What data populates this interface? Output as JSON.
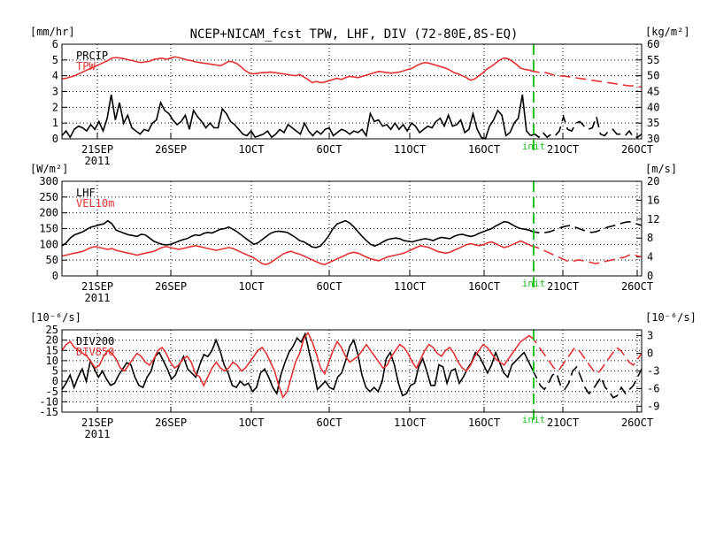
{
  "title": "NCEP+NICAM_fcst TPW, LHF, DIV (72-80E,8S-EQ)",
  "colors": {
    "black": "#000000",
    "red": "#e63232",
    "green": "#21c321"
  },
  "chart_data": [
    {
      "type": "line",
      "panel": "top",
      "left_unit": "[mm/hr]",
      "right_unit": "[kg/m²]",
      "left_ticks": [
        "0",
        "1",
        "2",
        "3",
        "4",
        "5",
        "6"
      ],
      "right_ticks": [
        "30",
        "35",
        "40",
        "45",
        "50",
        "55",
        "60"
      ],
      "ylim_left": [
        0,
        6
      ],
      "ylim_right": [
        30,
        60
      ],
      "grid": true,
      "x_tick_labels": [
        "21SEP",
        "26SEP",
        "1OCT",
        "6OCT",
        "11OCT",
        "16OCT",
        "21OCT",
        "26OCT"
      ],
      "x_year_label": "2011",
      "init_label": "init",
      "series": [
        {
          "name": "PRCIP",
          "axis": "left",
          "values": [
            0.2,
            0.5,
            0.1,
            0.6,
            0.8,
            0.7,
            0.5,
            0.9,
            0.6,
            1.1,
            0.5,
            1.3,
            2.8,
            1.2,
            2.3,
            1.0,
            1.5,
            0.7,
            0.5,
            0.3,
            0.6,
            0.5,
            1.0,
            1.2,
            2.3,
            1.8,
            1.6,
            1.2,
            0.9,
            1.1,
            1.5,
            0.6,
            1.8,
            1.4,
            1.1,
            0.7,
            1.0,
            0.7,
            0.7,
            1.9,
            1.6,
            1.1,
            0.9,
            0.6,
            0.3,
            0.2,
            0.5,
            0.1,
            0.2,
            0.3,
            0.5,
            0.1,
            0.3,
            0.6,
            0.4,
            0.9,
            0.7,
            0.5,
            0.3,
            1.0,
            0.5,
            0.2,
            0.5,
            0.3,
            0.6,
            0.7,
            0.2,
            0.4,
            0.6,
            0.5,
            0.3,
            0.5,
            0.4,
            0.6,
            0.2,
            1.6,
            1.1,
            1.2,
            0.8,
            0.9,
            0.6,
            1.0,
            0.6,
            0.9,
            0.5,
            1.0,
            0.8,
            0.4,
            0.6,
            0.8,
            0.7,
            1.1,
            1.3,
            0.8,
            1.5,
            0.8,
            0.9,
            1.2,
            0.4,
            0.6,
            1.6,
            0.6,
            0.1,
            0.0,
            0.8,
            1.2,
            1.8,
            1.5,
            0.2,
            0.4,
            1.0,
            1.3,
            2.8,
            0.5,
            0.2,
            0.3,
            0.1,
            0.4,
            0.1,
            0.3,
            0.2,
            0.5,
            1.4,
            0.6,
            0.5,
            1.0,
            1.1,
            0.8,
            0.6,
            0.7,
            1.4,
            0.3,
            0.2,
            0.5,
            0.6,
            0.3,
            0.3,
            0.2,
            0.5,
            0.1,
            0.1,
            0.3
          ]
        },
        {
          "name": "TPW",
          "axis": "right",
          "values": [
            49.0,
            49.2,
            49.6,
            50.0,
            50.6,
            51.2,
            51.8,
            52.4,
            53.0,
            53.6,
            54.2,
            54.8,
            55.6,
            55.8,
            55.6,
            55.4,
            55.0,
            54.8,
            54.4,
            54.2,
            54.4,
            54.6,
            55.2,
            55.4,
            55.6,
            55.2,
            55.6,
            56.0,
            55.8,
            55.4,
            55.0,
            54.8,
            54.4,
            54.2,
            54.0,
            53.8,
            53.6,
            53.4,
            53.2,
            53.8,
            54.6,
            54.4,
            53.8,
            52.8,
            51.6,
            50.8,
            50.6,
            50.8,
            51.0,
            51.0,
            51.2,
            51.0,
            50.8,
            50.6,
            50.4,
            50.2,
            50.0,
            50.4,
            49.6,
            48.8,
            47.8,
            48.2,
            47.8,
            48.0,
            48.4,
            48.8,
            49.2,
            48.8,
            49.4,
            49.8,
            49.6,
            49.4,
            49.8,
            50.2,
            50.6,
            51.0,
            51.4,
            51.2,
            51.0,
            50.8,
            51.0,
            51.2,
            51.6,
            52.0,
            52.4,
            53.2,
            53.8,
            54.2,
            54.0,
            53.6,
            53.2,
            52.8,
            52.4,
            51.8,
            51.0,
            50.6,
            50.0,
            49.4,
            48.6,
            49.0,
            50.0,
            51.0,
            52.2,
            53.0,
            54.0,
            55.0,
            55.6,
            55.4,
            54.6,
            53.6,
            52.4,
            52.0,
            51.8,
            51.4,
            51.2,
            50.8,
            51.0,
            50.6,
            50.2,
            49.8,
            50.0,
            49.8,
            49.6,
            49.4,
            49.2,
            49.0,
            48.8,
            48.6,
            48.4,
            48.2,
            48.0,
            47.8,
            47.6,
            47.4,
            47.2,
            47.0,
            46.8,
            46.8,
            46.6,
            46.4
          ]
        }
      ]
    },
    {
      "type": "line",
      "panel": "middle",
      "left_unit": "[W/m²]",
      "right_unit": "[m/s]",
      "left_ticks": [
        "0",
        "50",
        "100",
        "150",
        "200",
        "250",
        "300"
      ],
      "right_ticks": [
        "0",
        "4",
        "8",
        "12",
        "16",
        "20"
      ],
      "ylim_left": [
        0,
        300
      ],
      "ylim_right": [
        0,
        20
      ],
      "grid": true,
      "x_tick_labels": [
        "21SEP",
        "26SEP",
        "1OCT",
        "6OCT",
        "11OCT",
        "16OCT",
        "21OCT",
        "26OCT"
      ],
      "x_year_label": "2011",
      "init_label": "init",
      "series": [
        {
          "name": "LHF",
          "axis": "left",
          "values": [
            95,
            105,
            120,
            130,
            135,
            140,
            148,
            155,
            158,
            162,
            165,
            175,
            165,
            145,
            140,
            135,
            130,
            128,
            125,
            132,
            130,
            120,
            110,
            105,
            100,
            98,
            100,
            105,
            110,
            115,
            118,
            125,
            130,
            128,
            135,
            138,
            136,
            142,
            148,
            150,
            155,
            148,
            140,
            130,
            120,
            110,
            100,
            105,
            115,
            125,
            135,
            140,
            142,
            140,
            138,
            130,
            122,
            112,
            108,
            100,
            92,
            90,
            95,
            110,
            128,
            150,
            165,
            170,
            175,
            168,
            155,
            140,
            125,
            112,
            100,
            95,
            100,
            108,
            115,
            118,
            120,
            118,
            112,
            110,
            108,
            112,
            115,
            118,
            116,
            112,
            118,
            122,
            120,
            118,
            125,
            130,
            132,
            128,
            125,
            128,
            135,
            140,
            145,
            150,
            158,
            165,
            172,
            170,
            162,
            155,
            150,
            148,
            145,
            140,
            138,
            135,
            138,
            140,
            145,
            150,
            155,
            158,
            160,
            155,
            150,
            145,
            140,
            138,
            140,
            145,
            150,
            155,
            158,
            162,
            166,
            170,
            172,
            168,
            164,
            160
          ]
        },
        {
          "name": "VEL10m",
          "axis": "right",
          "values": [
            4.2,
            4.4,
            4.6,
            4.8,
            5.0,
            5.2,
            5.6,
            6.0,
            6.2,
            6.0,
            5.8,
            5.6,
            5.8,
            5.4,
            5.2,
            5.0,
            4.8,
            4.6,
            4.4,
            4.6,
            4.8,
            5.0,
            5.2,
            5.6,
            6.0,
            6.2,
            6.0,
            5.8,
            5.6,
            5.8,
            6.0,
            6.2,
            6.4,
            6.2,
            6.0,
            5.8,
            5.6,
            5.4,
            5.6,
            5.8,
            6.0,
            5.8,
            5.4,
            5.0,
            4.6,
            4.2,
            3.8,
            3.2,
            2.6,
            2.4,
            2.8,
            3.4,
            4.0,
            4.6,
            5.0,
            5.2,
            4.8,
            4.6,
            4.2,
            3.8,
            3.4,
            3.0,
            2.6,
            2.4,
            2.8,
            3.2,
            3.6,
            4.0,
            4.4,
            4.8,
            5.0,
            4.8,
            4.4,
            4.0,
            3.6,
            3.4,
            3.2,
            3.6,
            4.0,
            4.2,
            4.4,
            4.6,
            4.8,
            5.2,
            5.6,
            6.0,
            6.4,
            6.2,
            6.0,
            5.6,
            5.2,
            5.0,
            4.8,
            5.0,
            5.4,
            5.8,
            6.2,
            6.6,
            6.8,
            6.6,
            6.4,
            6.6,
            7.0,
            7.2,
            6.8,
            6.4,
            6.0,
            6.2,
            6.6,
            7.0,
            7.4,
            7.0,
            6.6,
            6.2,
            6.0,
            5.6,
            5.2,
            4.8,
            4.4,
            4.0,
            3.6,
            3.2,
            3.0,
            3.2,
            3.4,
            3.2,
            3.0,
            2.8,
            2.6,
            2.8,
            3.0,
            3.2,
            3.4,
            3.6,
            3.8,
            4.0,
            4.4,
            4.6,
            4.2,
            4.0
          ]
        }
      ]
    },
    {
      "type": "line",
      "panel": "bottom",
      "left_unit": "[10⁻⁶/s]",
      "right_unit": "[10⁻⁶/s]",
      "left_ticks": [
        "-15",
        "-10",
        "-5",
        "0",
        "5",
        "10",
        "15",
        "20",
        "25"
      ],
      "right_ticks": [
        "-9",
        "-6",
        "-3",
        "0",
        "3"
      ],
      "ylim_left": [
        -15,
        25
      ],
      "ylim_right": [
        -10,
        4
      ],
      "grid": true,
      "x_tick_labels": [
        "21SEP",
        "26SEP",
        "1OCT",
        "6OCT",
        "11OCT",
        "16OCT",
        "21OCT",
        "26OCT"
      ],
      "x_year_label": "2011",
      "init_label": "init",
      "series": [
        {
          "name": "DIV200",
          "axis": "left",
          "values": [
            -4,
            -1,
            3,
            -3,
            2,
            6,
            0,
            10,
            6,
            2,
            5,
            1,
            -2,
            -1,
            3,
            6,
            9,
            8,
            2,
            -2,
            -3,
            2,
            5,
            12,
            14,
            10,
            6,
            1,
            3,
            8,
            12,
            6,
            4,
            2,
            8,
            13,
            12,
            15,
            20,
            15,
            8,
            4,
            -2,
            -3,
            0,
            -2,
            -1,
            -5,
            -3,
            4,
            6,
            2,
            -3,
            -6,
            3,
            9,
            14,
            17,
            21,
            19,
            23,
            14,
            6,
            -4,
            -2,
            0,
            -3,
            -4,
            2,
            4,
            10,
            17,
            20,
            13,
            3,
            -3,
            -5,
            -3,
            -5,
            0,
            11,
            14,
            8,
            -1,
            -7,
            -6,
            -2,
            -1,
            7,
            11,
            5,
            -2,
            -2,
            8,
            7,
            -1,
            5,
            6,
            -1,
            2,
            6,
            9,
            14,
            12,
            8,
            4,
            8,
            14,
            9,
            4,
            2,
            8,
            10,
            12,
            14,
            10,
            6,
            2,
            -2,
            -4,
            -1,
            3,
            4,
            -2,
            -4,
            -1,
            5,
            7,
            2,
            -3,
            -6,
            -4,
            -1,
            2,
            -3,
            -5,
            -8,
            -7,
            -3,
            -6,
            -4,
            -2,
            2,
            6
          ]
        },
        {
          "name": "DIV850",
          "axis": "right",
          "values": [
            0.5,
            1.5,
            2.0,
            1.0,
            0.5,
            0.0,
            -0.5,
            -1.5,
            -2.5,
            -2.0,
            -0.5,
            0.5,
            0.0,
            -1.0,
            -2.5,
            -3.0,
            -2.0,
            -1.0,
            0.0,
            -0.5,
            -1.5,
            -2.0,
            -1.0,
            0.5,
            1.0,
            0.0,
            -1.5,
            -2.5,
            -2.0,
            -1.0,
            -0.5,
            -1.5,
            -3.5,
            -4.0,
            -5.5,
            -4.0,
            -2.5,
            -1.5,
            -2.5,
            -3.0,
            -2.5,
            -1.5,
            -2.0,
            -3.0,
            -2.5,
            -1.5,
            -0.5,
            0.5,
            1.0,
            0.0,
            -1.5,
            -3.0,
            -5.5,
            -7.5,
            -6.5,
            -4.0,
            -1.5,
            0.0,
            2.5,
            3.5,
            2.0,
            0.0,
            -2.5,
            -3.5,
            -1.5,
            0.5,
            2.0,
            1.0,
            -0.5,
            -1.5,
            -1.0,
            -0.5,
            0.5,
            1.5,
            0.5,
            -0.5,
            -1.5,
            -2.5,
            -2.0,
            -0.5,
            0.5,
            1.5,
            1.0,
            0.0,
            -1.5,
            -2.5,
            -1.0,
            0.5,
            1.5,
            1.0,
            0.0,
            -0.5,
            0.5,
            1.0,
            0.0,
            -1.5,
            -2.5,
            -3.0,
            -2.0,
            -0.5,
            0.5,
            1.5,
            1.0,
            0.0,
            -1.0,
            -1.5,
            -2.0,
            -1.0,
            0.0,
            1.0,
            2.0,
            2.5,
            3.0,
            2.5,
            1.5,
            0.5,
            -0.5,
            -1.5,
            -2.5,
            -3.0,
            -2.0,
            -1.0,
            0.0,
            1.0,
            0.5,
            -0.5,
            -1.5,
            -2.5,
            -3.5,
            -3.0,
            -2.0,
            -1.0,
            0.0,
            1.0,
            0.5,
            -0.5,
            -1.5,
            -2.0,
            -1.0,
            0.0
          ]
        }
      ]
    }
  ]
}
